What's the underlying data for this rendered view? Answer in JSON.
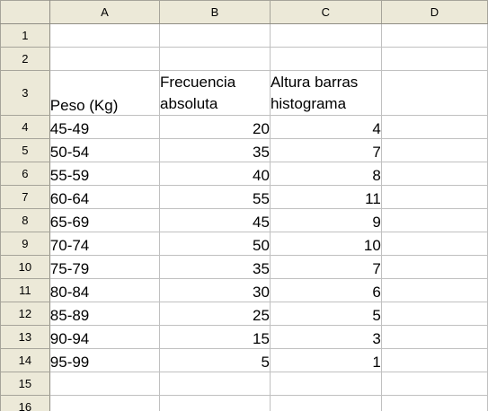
{
  "columns": [
    "A",
    "B",
    "C",
    "D"
  ],
  "row_numbers": [
    "1",
    "2",
    "3",
    "4",
    "5",
    "6",
    "7",
    "8",
    "9",
    "10",
    "11",
    "12",
    "13",
    "14",
    "15",
    "16"
  ],
  "header_row": {
    "a": "Peso (Kg)",
    "b_line1": "Frecuencia",
    "b_line2": "absoluta",
    "c_line1": "Altura barras",
    "c_line2": "histograma"
  },
  "rows": [
    {
      "peso": "45-49",
      "frecuencia": "20",
      "altura": "4"
    },
    {
      "peso": "50-54",
      "frecuencia": "35",
      "altura": "7"
    },
    {
      "peso": "55-59",
      "frecuencia": "40",
      "altura": "8"
    },
    {
      "peso": "60-64",
      "frecuencia": "55",
      "altura": "11"
    },
    {
      "peso": "65-69",
      "frecuencia": "45",
      "altura": "9"
    },
    {
      "peso": "70-74",
      "frecuencia": "50",
      "altura": "10"
    },
    {
      "peso": "75-79",
      "frecuencia": "35",
      "altura": "7"
    },
    {
      "peso": "80-84",
      "frecuencia": "30",
      "altura": "6"
    },
    {
      "peso": "85-89",
      "frecuencia": "25",
      "altura": "5"
    },
    {
      "peso": "90-94",
      "frecuencia": "15",
      "altura": "3"
    },
    {
      "peso": "95-99",
      "frecuencia": "5",
      "altura": "1"
    }
  ]
}
